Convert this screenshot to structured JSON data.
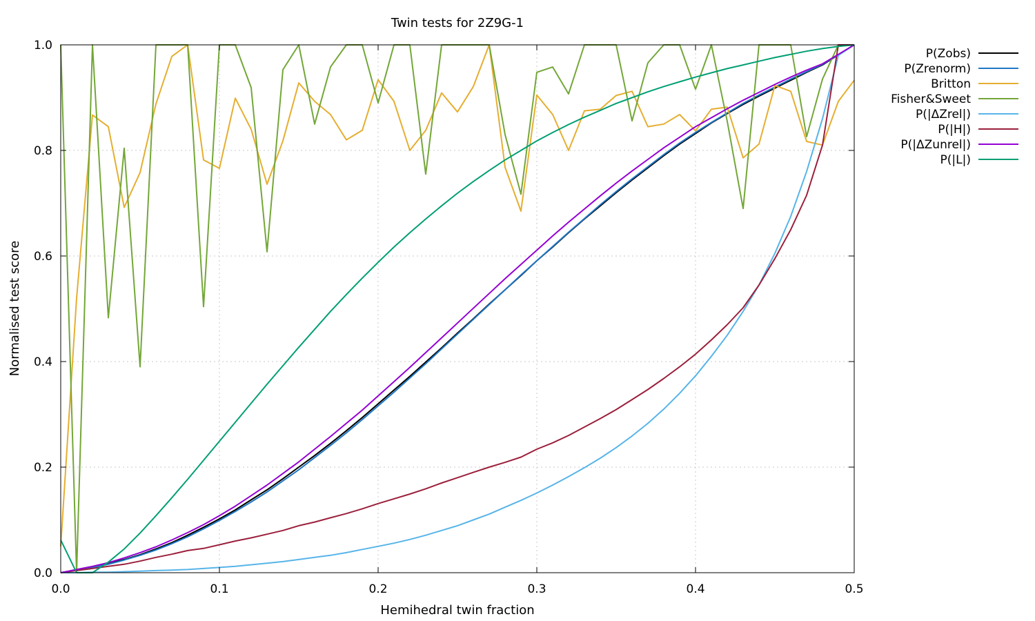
{
  "chart_data": {
    "type": "line",
    "title": "Twin tests for 2Z9G-1",
    "xlabel": "Hemihedral twin fraction",
    "ylabel": "Normalised test score",
    "xlim": [
      0,
      0.5
    ],
    "ylim": [
      0,
      1
    ],
    "xticks": [
      0,
      0.1,
      0.2,
      0.3,
      0.4,
      0.5
    ],
    "xtick_labels": [
      "0.0",
      "0.1",
      "0.2",
      "0.3",
      "0.4",
      "0.5"
    ],
    "yticks": [
      0,
      0.2,
      0.4,
      0.6,
      0.8,
      1.0
    ],
    "ytick_labels": [
      "0.0",
      "0.2",
      "0.4",
      "0.6",
      "0.8",
      "1.0"
    ],
    "grid": true,
    "legend_position": "outside top-right",
    "x": [
      0.0,
      0.01,
      0.02,
      0.03,
      0.04,
      0.05,
      0.06,
      0.07,
      0.08,
      0.09,
      0.1,
      0.11,
      0.12,
      0.13,
      0.14,
      0.15,
      0.16,
      0.17,
      0.18,
      0.19,
      0.2,
      0.21,
      0.22,
      0.23,
      0.24,
      0.25,
      0.26,
      0.27,
      0.28,
      0.29,
      0.3,
      0.31,
      0.32,
      0.33,
      0.34,
      0.35,
      0.36,
      0.37,
      0.38,
      0.39,
      0.4,
      0.41,
      0.42,
      0.43,
      0.44,
      0.45,
      0.46,
      0.47,
      0.48,
      0.49,
      0.5
    ],
    "series": [
      {
        "name": "P(Zobs)",
        "color": "#000000",
        "values": [
          0.0,
          0.005,
          0.01,
          0.017,
          0.025,
          0.034,
          0.045,
          0.057,
          0.071,
          0.086,
          0.102,
          0.119,
          0.138,
          0.157,
          0.178,
          0.2,
          0.222,
          0.245,
          0.269,
          0.294,
          0.32,
          0.346,
          0.372,
          0.399,
          0.426,
          0.454,
          0.481,
          0.509,
          0.536,
          0.563,
          0.591,
          0.617,
          0.644,
          0.67,
          0.695,
          0.72,
          0.744,
          0.767,
          0.79,
          0.812,
          0.832,
          0.852,
          0.87,
          0.887,
          0.903,
          0.918,
          0.933,
          0.948,
          0.962,
          0.981,
          1.0
        ]
      },
      {
        "name": "P(Zrenorm)",
        "color": "#1f77c4",
        "values": [
          0.0,
          0.005,
          0.01,
          0.016,
          0.024,
          0.033,
          0.043,
          0.055,
          0.068,
          0.083,
          0.099,
          0.116,
          0.134,
          0.153,
          0.174,
          0.195,
          0.218,
          0.241,
          0.265,
          0.29,
          0.316,
          0.342,
          0.369,
          0.396,
          0.424,
          0.452,
          0.48,
          0.508,
          0.536,
          0.564,
          0.591,
          0.618,
          0.645,
          0.671,
          0.697,
          0.722,
          0.746,
          0.769,
          0.792,
          0.814,
          0.834,
          0.853,
          0.871,
          0.889,
          0.905,
          0.92,
          0.935,
          0.949,
          0.963,
          0.981,
          1.0
        ]
      },
      {
        "name": "Britton",
        "color": "#e5ae30",
        "values": [
          0.05,
          0.52,
          0.867,
          0.845,
          0.692,
          0.758,
          0.888,
          0.978,
          1.0,
          0.782,
          0.766,
          0.899,
          0.84,
          0.736,
          0.818,
          0.928,
          0.893,
          0.868,
          0.82,
          0.838,
          0.934,
          0.893,
          0.8,
          0.838,
          0.909,
          0.873,
          0.921,
          1.0,
          0.768,
          0.685,
          0.905,
          0.868,
          0.8,
          0.875,
          0.878,
          0.904,
          0.912,
          0.845,
          0.85,
          0.868,
          0.837,
          0.878,
          0.882,
          0.786,
          0.812,
          0.923,
          0.912,
          0.817,
          0.81,
          0.893,
          0.933
        ]
      },
      {
        "name": "Fisher&Sweet",
        "color": "#73a637",
        "values": [
          1.0,
          0.0,
          1.0,
          0.483,
          0.804,
          0.39,
          1.0,
          1.0,
          1.0,
          0.504,
          1.0,
          1.0,
          0.919,
          0.608,
          0.953,
          1.0,
          0.85,
          0.958,
          1.0,
          1.0,
          0.89,
          1.0,
          1.0,
          0.755,
          1.0,
          1.0,
          1.0,
          1.0,
          0.83,
          0.717,
          0.948,
          0.958,
          0.907,
          1.0,
          1.0,
          1.0,
          0.856,
          0.966,
          1.0,
          1.0,
          0.916,
          1.0,
          0.855,
          0.69,
          1.0,
          1.0,
          1.0,
          0.826,
          0.935,
          1.0,
          1.0
        ]
      },
      {
        "name": "P(|ΔZrel|)",
        "color": "#56b4e9",
        "values": [
          0.0,
          0.0,
          0.001,
          0.001,
          0.002,
          0.003,
          0.004,
          0.005,
          0.006,
          0.008,
          0.01,
          0.012,
          0.015,
          0.018,
          0.021,
          0.025,
          0.029,
          0.033,
          0.038,
          0.044,
          0.05,
          0.056,
          0.063,
          0.071,
          0.08,
          0.089,
          0.1,
          0.111,
          0.124,
          0.137,
          0.151,
          0.166,
          0.182,
          0.199,
          0.217,
          0.237,
          0.259,
          0.283,
          0.31,
          0.34,
          0.373,
          0.41,
          0.45,
          0.495,
          0.545,
          0.605,
          0.675,
          0.76,
          0.86,
          0.98,
          1.0
        ]
      },
      {
        "name": "P(|H|)",
        "color": "#9b1f3b",
        "values": [
          0.0,
          0.004,
          0.008,
          0.012,
          0.016,
          0.022,
          0.029,
          0.035,
          0.042,
          0.046,
          0.053,
          0.06,
          0.066,
          0.073,
          0.08,
          0.089,
          0.096,
          0.104,
          0.112,
          0.121,
          0.131,
          0.14,
          0.149,
          0.159,
          0.17,
          0.18,
          0.19,
          0.2,
          0.209,
          0.219,
          0.234,
          0.246,
          0.26,
          0.276,
          0.292,
          0.309,
          0.328,
          0.347,
          0.368,
          0.39,
          0.414,
          0.441,
          0.47,
          0.502,
          0.545,
          0.595,
          0.65,
          0.715,
          0.81,
          1.0,
          1.0
        ]
      },
      {
        "name": "P(|ΔZunrel|)",
        "color": "#9400d3",
        "values": [
          0.0,
          0.006,
          0.012,
          0.019,
          0.028,
          0.038,
          0.049,
          0.062,
          0.076,
          0.091,
          0.108,
          0.126,
          0.146,
          0.166,
          0.188,
          0.21,
          0.234,
          0.258,
          0.283,
          0.308,
          0.335,
          0.362,
          0.389,
          0.417,
          0.445,
          0.473,
          0.501,
          0.529,
          0.557,
          0.584,
          0.611,
          0.638,
          0.664,
          0.689,
          0.714,
          0.738,
          0.761,
          0.783,
          0.805,
          0.825,
          0.845,
          0.862,
          0.879,
          0.895,
          0.91,
          0.925,
          0.939,
          0.952,
          0.964,
          0.982,
          1.0
        ]
      },
      {
        "name": "P(|L|)",
        "color": "#009e73",
        "values": [
          0.062,
          0.0,
          0.0,
          0.02,
          0.045,
          0.075,
          0.108,
          0.142,
          0.177,
          0.213,
          0.249,
          0.285,
          0.321,
          0.357,
          0.392,
          0.427,
          0.461,
          0.495,
          0.527,
          0.558,
          0.588,
          0.617,
          0.644,
          0.67,
          0.695,
          0.719,
          0.741,
          0.762,
          0.782,
          0.8,
          0.818,
          0.834,
          0.849,
          0.863,
          0.876,
          0.889,
          0.9,
          0.911,
          0.921,
          0.93,
          0.939,
          0.947,
          0.955,
          0.962,
          0.969,
          0.976,
          0.982,
          0.988,
          0.993,
          0.997,
          1.0
        ]
      }
    ]
  }
}
